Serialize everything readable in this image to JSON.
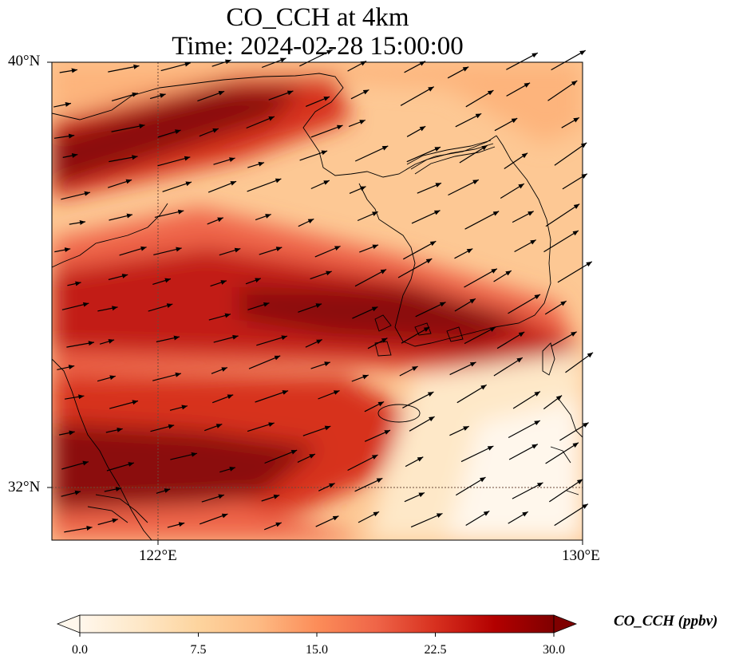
{
  "title_line1": "CO_CCH at 4km",
  "title_line2": "Time: 2024-02-28 15:00:00",
  "lat_labels": [
    "40°N",
    "32°N"
  ],
  "lon_labels": [
    "122°E",
    "130°E"
  ],
  "colorbar": {
    "label": "CO_CCH (ppbv)",
    "ticks": [
      "0.0",
      "7.5",
      "15.0",
      "22.5",
      "30.0"
    ],
    "range": [
      0,
      30
    ],
    "colormap": [
      "#fff7ec",
      "#fee8c8",
      "#fdd49e",
      "#fdbb84",
      "#fc8d59",
      "#ef6548",
      "#d7301f",
      "#b30000",
      "#7f0000"
    ]
  },
  "map": {
    "lon_range": [
      120,
      130
    ],
    "lat_range": [
      31,
      40
    ],
    "gridlines_lon": [
      122
    ],
    "gridlines_lat": [
      32
    ]
  }
}
